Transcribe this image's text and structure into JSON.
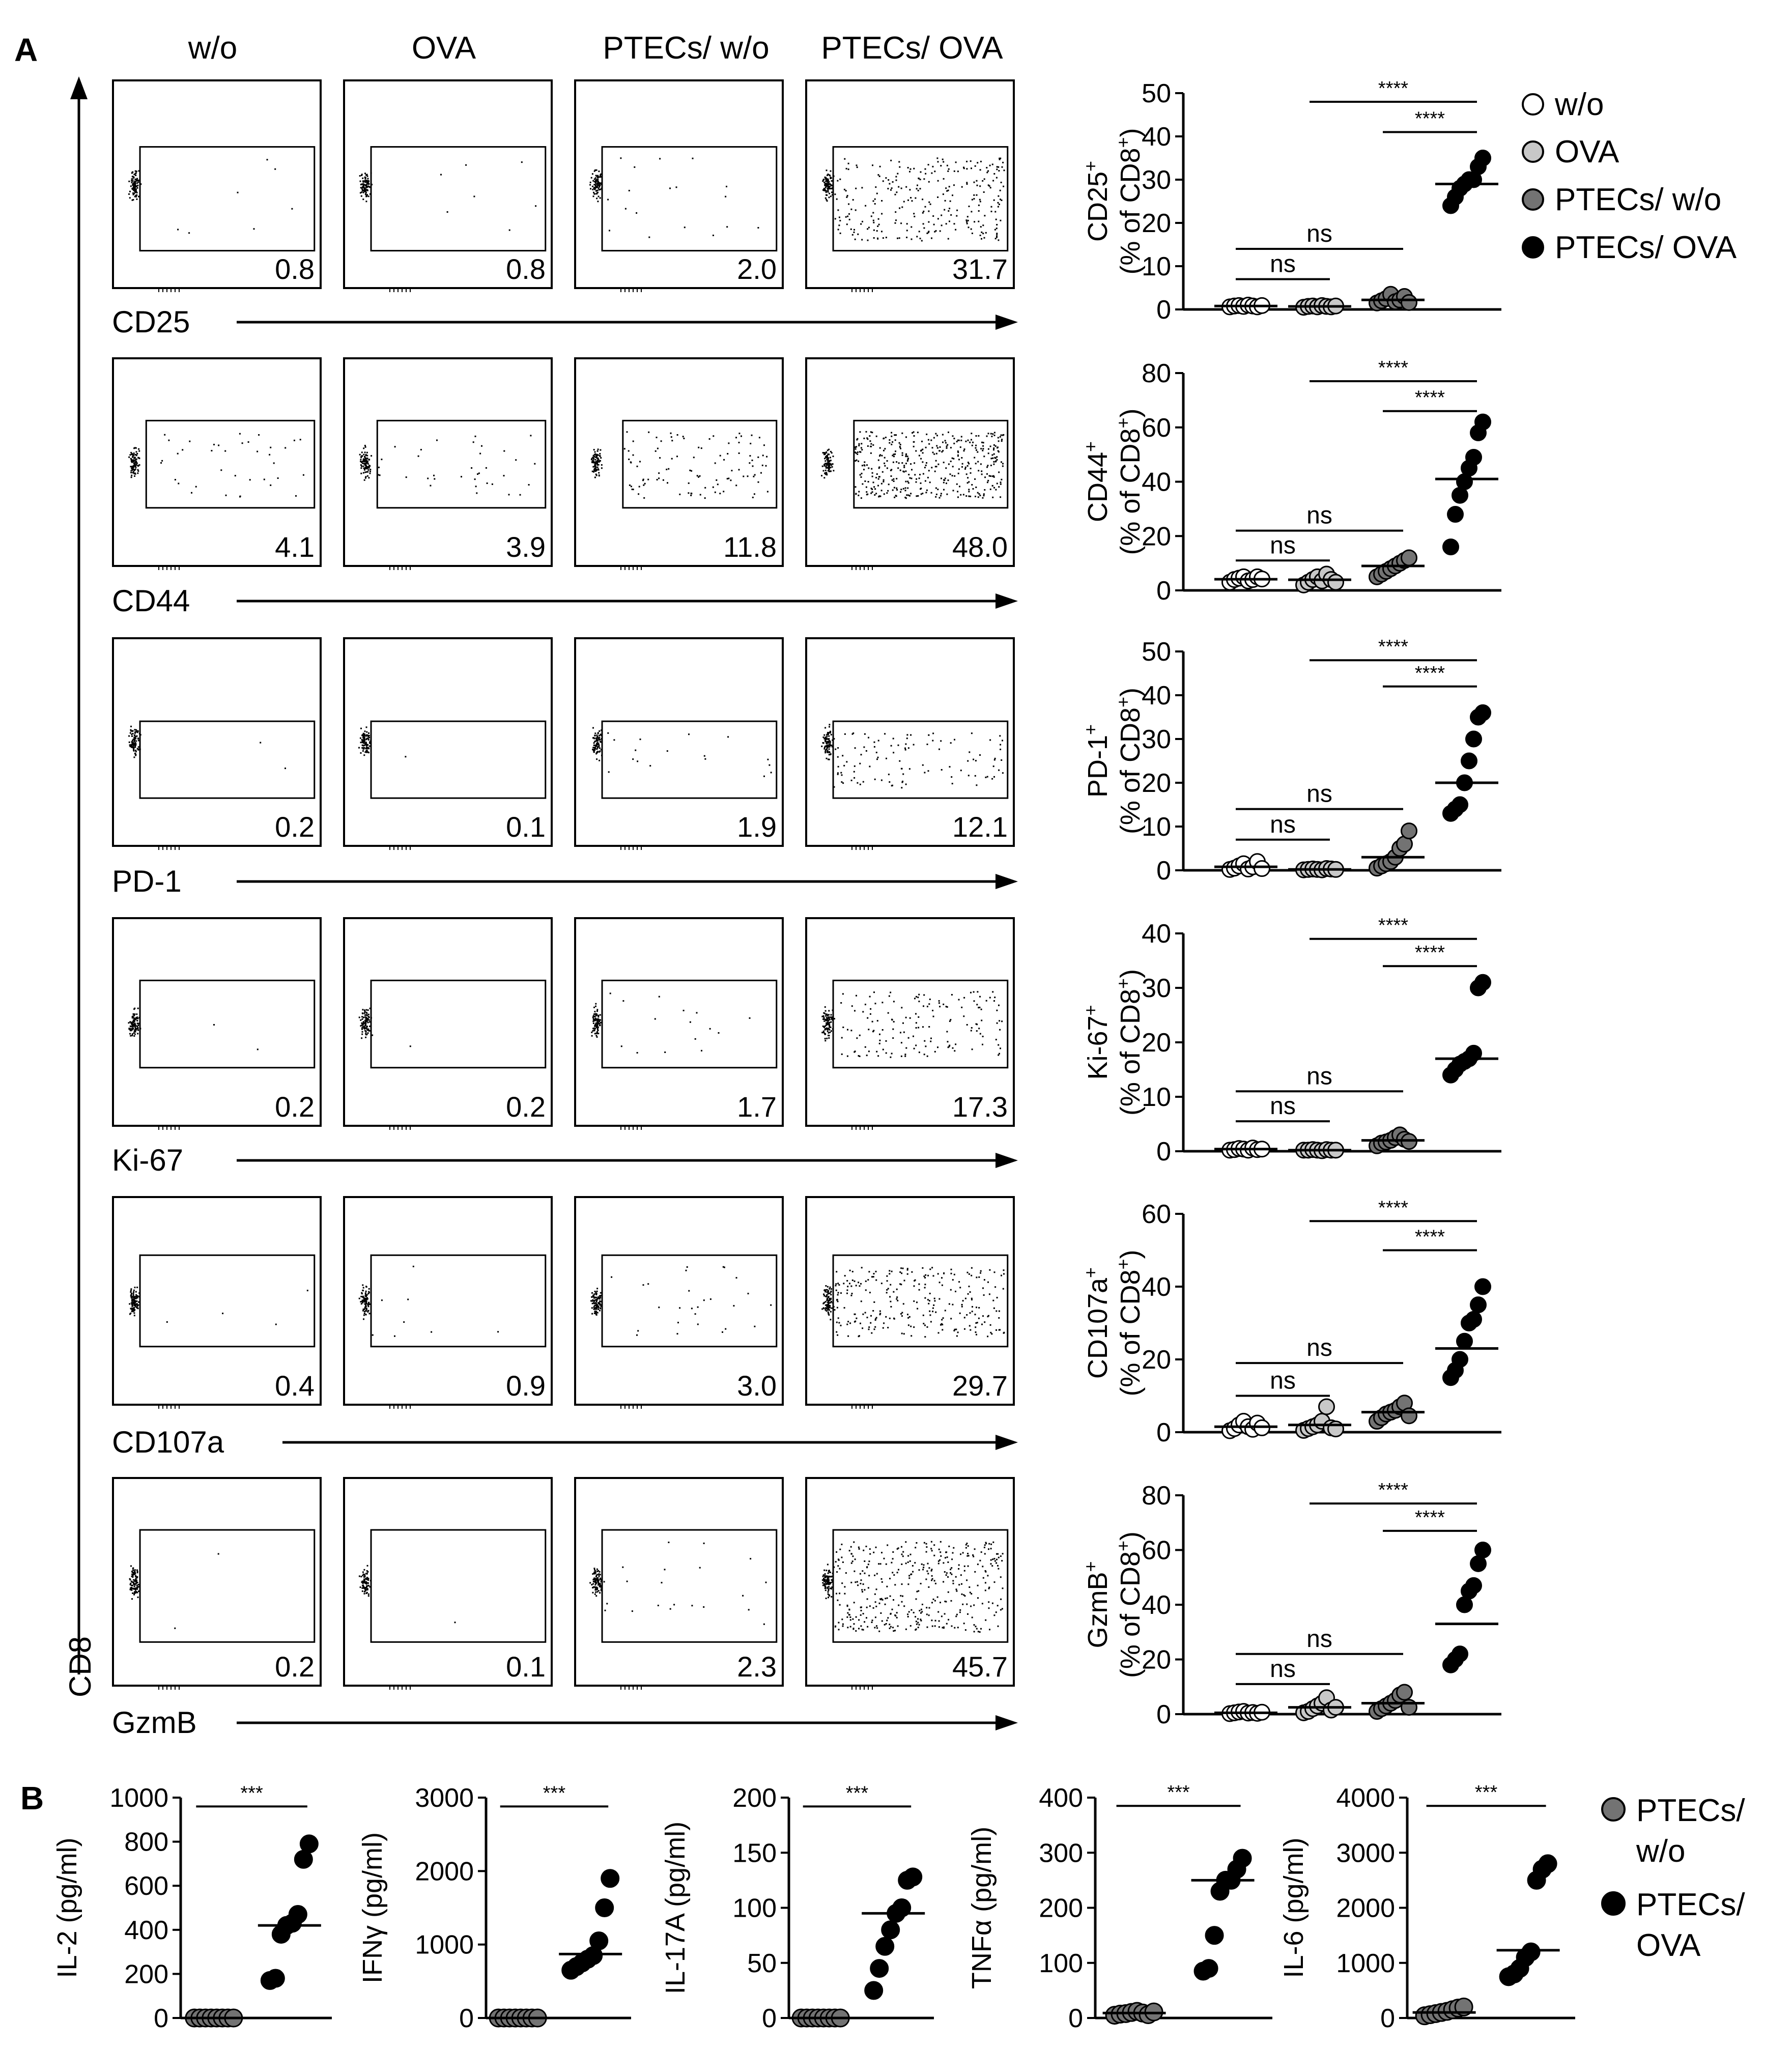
{
  "panels": {
    "a": "A",
    "b": "B"
  },
  "flow": {
    "columns": [
      "w/o",
      "OVA",
      "PTECs/ w/o",
      "PTECs/ OVA"
    ],
    "y_axis_label": "CD8",
    "rows": [
      {
        "marker": "CD25",
        "percents": [
          "0.8",
          "0.8",
          "2.0",
          "31.7"
        ]
      },
      {
        "marker": "CD44",
        "percents": [
          "4.1",
          "3.9",
          "11.8",
          "48.0"
        ]
      },
      {
        "marker": "PD-1",
        "percents": [
          "0.2",
          "0.1",
          "1.9",
          "12.1"
        ]
      },
      {
        "marker": "Ki-67",
        "percents": [
          "0.2",
          "0.2",
          "1.7",
          "17.3"
        ]
      },
      {
        "marker": "CD107a",
        "percents": [
          "0.4",
          "0.9",
          "3.0",
          "29.7"
        ]
      },
      {
        "marker": "GzmB",
        "percents": [
          "0.2",
          "0.1",
          "2.3",
          "45.7"
        ]
      }
    ]
  },
  "legend_a": [
    "w/o",
    "OVA",
    "PTECs/ w/o",
    "PTECs/ OVA"
  ],
  "legend_b": [
    [
      "PTECs/",
      "w/o"
    ],
    [
      "PTECs/",
      "OVA"
    ]
  ],
  "colors": {
    "wo": "#ffffff",
    "ova": "#c8c8c8",
    "ptecs_wo": "#737373",
    "ptecs_ova": "#000000"
  },
  "chart_data": [
    {
      "type": "scatter",
      "title": "CD25",
      "ylabel_marker": "CD25",
      "ylabel_sup": "+",
      "ylabel_unit_pre": "(% of CD8",
      "ylabel_unit_post": ")",
      "ylim": [
        0,
        50
      ],
      "yticks": [
        0,
        10,
        20,
        30,
        40,
        50
      ],
      "categories": [
        "w/o",
        "OVA",
        "PTECs/ w/o",
        "PTECs/ OVA"
      ],
      "points": [
        [
          0.6,
          0.8,
          0.9,
          0.7,
          1.0,
          0.8,
          0.6,
          0.9
        ],
        [
          0.5,
          0.7,
          0.8,
          0.6,
          0.9,
          0.7,
          0.6,
          0.8
        ],
        [
          1.5,
          2.0,
          2.5,
          3.5,
          1.8,
          2.2,
          3.0,
          1.6
        ],
        [
          24,
          26,
          28,
          29,
          30,
          30,
          33,
          35
        ]
      ],
      "means": [
        0.8,
        0.7,
        2.2,
        29
      ],
      "comparisons": [
        {
          "label": "ns",
          "from": 0,
          "to": 1,
          "y": 7
        },
        {
          "label": "ns",
          "from": 0,
          "to": 2,
          "y": 14
        },
        {
          "label": "****",
          "from": 1,
          "to": 3,
          "y": 48
        },
        {
          "label": "****",
          "from": 2,
          "to": 3,
          "y": 41
        }
      ]
    },
    {
      "type": "scatter",
      "title": "CD44",
      "ylabel_marker": "CD44",
      "ylabel_sup": "+",
      "ylabel_unit_pre": "(% of CD8",
      "ylabel_unit_post": ")",
      "ylim": [
        0,
        80
      ],
      "yticks": [
        0,
        20,
        40,
        60,
        80
      ],
      "categories": [
        "w/o",
        "OVA",
        "PTECs/ w/o",
        "PTECs/ OVA"
      ],
      "points": [
        [
          3,
          4,
          4.5,
          5,
          3.5,
          4,
          5,
          4.2
        ],
        [
          2,
          3,
          4,
          5,
          3.5,
          6,
          4,
          3
        ],
        [
          5,
          6,
          7,
          8,
          9,
          10,
          11,
          12
        ],
        [
          16,
          28,
          35,
          40,
          45,
          49,
          58,
          62
        ]
      ],
      "means": [
        4.1,
        3.9,
        9,
        41
      ],
      "comparisons": [
        {
          "label": "ns",
          "from": 0,
          "to": 1,
          "y": 11
        },
        {
          "label": "ns",
          "from": 0,
          "to": 2,
          "y": 22
        },
        {
          "label": "****",
          "from": 1,
          "to": 3,
          "y": 77
        },
        {
          "label": "****",
          "from": 2,
          "to": 3,
          "y": 66
        }
      ]
    },
    {
      "type": "scatter",
      "title": "PD-1",
      "ylabel_marker": "PD-1",
      "ylabel_sup": "+",
      "ylabel_unit_pre": "(% of CD8",
      "ylabel_unit_post": ")",
      "ylim": [
        0,
        50
      ],
      "yticks": [
        0,
        10,
        20,
        30,
        40,
        50
      ],
      "categories": [
        "w/o",
        "OVA",
        "PTECs/ w/o",
        "PTECs/ OVA"
      ],
      "points": [
        [
          0.2,
          0.5,
          1.0,
          1.5,
          0.3,
          0.8,
          2.0,
          0.4
        ],
        [
          0.1,
          0.2,
          0.3,
          0.2,
          0.1,
          0.4,
          0.3,
          0.2
        ],
        [
          0.5,
          1.0,
          1.5,
          2.0,
          3.0,
          5.0,
          6.0,
          9.0
        ],
        [
          13,
          14,
          15,
          20,
          25,
          30,
          35,
          36
        ]
      ],
      "means": [
        0.8,
        0.2,
        3,
        20
      ],
      "comparisons": [
        {
          "label": "ns",
          "from": 0,
          "to": 1,
          "y": 7
        },
        {
          "label": "ns",
          "from": 0,
          "to": 2,
          "y": 14
        },
        {
          "label": "****",
          "from": 1,
          "to": 3,
          "y": 48
        },
        {
          "label": "****",
          "from": 2,
          "to": 3,
          "y": 42
        }
      ]
    },
    {
      "type": "scatter",
      "title": "Ki-67",
      "ylabel_marker": "Ki-67",
      "ylabel_sup": "+",
      "ylabel_unit_pre": "(% of CD8",
      "ylabel_unit_post": ")",
      "ylim": [
        0,
        40
      ],
      "yticks": [
        0,
        10,
        20,
        30,
        40
      ],
      "categories": [
        "w/o",
        "OVA",
        "PTECs/ w/o",
        "PTECs/ OVA"
      ],
      "points": [
        [
          0.2,
          0.3,
          0.5,
          0.4,
          0.2,
          0.6,
          0.3,
          0.4
        ],
        [
          0.2,
          0.2,
          0.3,
          0.2,
          0.1,
          0.3,
          0.2,
          0.2
        ],
        [
          1.0,
          1.5,
          1.7,
          2.0,
          2.5,
          3.0,
          2.2,
          1.8
        ],
        [
          14,
          15,
          16,
          16.5,
          17,
          18,
          30,
          31
        ]
      ],
      "means": [
        0.4,
        0.2,
        2,
        17
      ],
      "comparisons": [
        {
          "label": "ns",
          "from": 0,
          "to": 1,
          "y": 5.5
        },
        {
          "label": "ns",
          "from": 0,
          "to": 2,
          "y": 11
        },
        {
          "label": "****",
          "from": 1,
          "to": 3,
          "y": 39
        },
        {
          "label": "****",
          "from": 2,
          "to": 3,
          "y": 34
        }
      ]
    },
    {
      "type": "scatter",
      "title": "CD107a",
      "ylabel_marker": "CD107a",
      "ylabel_sup": "+",
      "ylabel_unit_pre": "(% of CD8",
      "ylabel_unit_post": ")",
      "ylim": [
        0,
        60
      ],
      "yticks": [
        0,
        20,
        40,
        60
      ],
      "categories": [
        "w/o",
        "OVA",
        "PTECs/ w/o",
        "PTECs/ OVA"
      ],
      "points": [
        [
          0.4,
          1.0,
          2.0,
          3.0,
          1.5,
          0.8,
          2.5,
          1.2
        ],
        [
          0.5,
          1.0,
          1.5,
          2.0,
          3.0,
          7.0,
          1.2,
          0.9
        ],
        [
          3.0,
          4.0,
          5.0,
          5.5,
          6.0,
          7.0,
          8.0,
          4.5
        ],
        [
          15,
          17,
          20,
          25,
          30,
          31,
          35,
          40
        ]
      ],
      "means": [
        1.5,
        2,
        5.5,
        23
      ],
      "comparisons": [
        {
          "label": "ns",
          "from": 0,
          "to": 1,
          "y": 10
        },
        {
          "label": "ns",
          "from": 0,
          "to": 2,
          "y": 19
        },
        {
          "label": "****",
          "from": 1,
          "to": 3,
          "y": 58
        },
        {
          "label": "****",
          "from": 2,
          "to": 3,
          "y": 50
        }
      ]
    },
    {
      "type": "scatter",
      "title": "GzmB",
      "ylabel_marker": "GzmB",
      "ylabel_sup": "+",
      "ylabel_unit_pre": "(% of CD8",
      "ylabel_unit_post": ")",
      "ylim": [
        0,
        80
      ],
      "yticks": [
        0,
        20,
        40,
        60,
        80
      ],
      "categories": [
        "w/o",
        "OVA",
        "PTECs/ w/o",
        "PTECs/ OVA"
      ],
      "points": [
        [
          0.2,
          0.5,
          0.8,
          1.0,
          0.4,
          0.6,
          0.3,
          0.7
        ],
        [
          0.5,
          1.0,
          2.0,
          3.0,
          4.0,
          6.0,
          1.5,
          2.5
        ],
        [
          1.0,
          2.0,
          3.0,
          4.0,
          5.0,
          7.0,
          8.0,
          2.5
        ],
        [
          18,
          20,
          22,
          40,
          45,
          47,
          55,
          60
        ]
      ],
      "means": [
        0.5,
        2.5,
        4,
        33
      ],
      "comparisons": [
        {
          "label": "ns",
          "from": 0,
          "to": 1,
          "y": 11
        },
        {
          "label": "ns",
          "from": 0,
          "to": 2,
          "y": 22
        },
        {
          "label": "****",
          "from": 1,
          "to": 3,
          "y": 77
        },
        {
          "label": "****",
          "from": 2,
          "to": 3,
          "y": 67
        }
      ]
    },
    {
      "type": "scatter",
      "title": "IL-2",
      "ylabel": "IL-2 (pg/ml)",
      "ylim": [
        0,
        1000
      ],
      "yticks": [
        0,
        200,
        400,
        600,
        800,
        1000
      ],
      "categories": [
        "PTECs/ w/o",
        "PTECs/ OVA"
      ],
      "points": [
        [
          0,
          0,
          0,
          0,
          0,
          0,
          0,
          0
        ],
        [
          170,
          180,
          380,
          420,
          430,
          470,
          720,
          790
        ]
      ],
      "means": [
        0,
        420
      ],
      "comparisons": [
        {
          "label": "***",
          "from": 0,
          "to": 1,
          "y": 960
        }
      ]
    },
    {
      "type": "scatter",
      "title": "IFNγ",
      "ylabel": "IFNγ (pg/ml)",
      "ylim": [
        0,
        3000
      ],
      "yticks": [
        0,
        1000,
        2000,
        3000
      ],
      "categories": [
        "PTECs/ w/o",
        "PTECs/ OVA"
      ],
      "points": [
        [
          0,
          0,
          0,
          0,
          0,
          0,
          0,
          0
        ],
        [
          650,
          700,
          750,
          800,
          850,
          1050,
          1500,
          1900
        ]
      ],
      "means": [
        0,
        870
      ],
      "comparisons": [
        {
          "label": "***",
          "from": 0,
          "to": 1,
          "y": 2880
        }
      ]
    },
    {
      "type": "scatter",
      "title": "IL-17A",
      "ylabel": "IL-17A (pg/ml)",
      "ylim": [
        0,
        200
      ],
      "yticks": [
        0,
        50,
        100,
        150,
        200
      ],
      "categories": [
        "PTECs/ w/o",
        "PTECs/ OVA"
      ],
      "points": [
        [
          0,
          0,
          0,
          0,
          0,
          0,
          0,
          0
        ],
        [
          25,
          45,
          65,
          80,
          95,
          100,
          125,
          128
        ]
      ],
      "means": [
        0,
        95
      ],
      "comparisons": [
        {
          "label": "***",
          "from": 0,
          "to": 1,
          "y": 192
        }
      ]
    },
    {
      "type": "scatter",
      "title": "TNFα",
      "ylabel": "TNFα (pg/ml)",
      "ylim": [
        0,
        400
      ],
      "yticks": [
        0,
        100,
        200,
        300,
        400
      ],
      "categories": [
        "PTECs/ w/o",
        "PTECs/ OVA"
      ],
      "points": [
        [
          5,
          7,
          8,
          10,
          12,
          9,
          6,
          11
        ],
        [
          85,
          90,
          150,
          230,
          250,
          250,
          270,
          290
        ]
      ],
      "means": [
        9,
        250
      ],
      "comparisons": [
        {
          "label": "***",
          "from": 0,
          "to": 1,
          "y": 385
        }
      ]
    },
    {
      "type": "scatter",
      "title": "IL-6",
      "ylabel": "IL-6 (pg/ml)",
      "ylim": [
        0,
        4000
      ],
      "yticks": [
        0,
        1000,
        2000,
        3000,
        4000
      ],
      "categories": [
        "PTECs/ w/o",
        "PTECs/ OVA"
      ],
      "points": [
        [
          40,
          60,
          80,
          100,
          120,
          150,
          180,
          200
        ],
        [
          750,
          800,
          900,
          1100,
          1200,
          2500,
          2700,
          2800
        ]
      ],
      "means": [
        100,
        1230
      ],
      "comparisons": [
        {
          "label": "***",
          "from": 0,
          "to": 1,
          "y": 3850
        }
      ]
    }
  ]
}
